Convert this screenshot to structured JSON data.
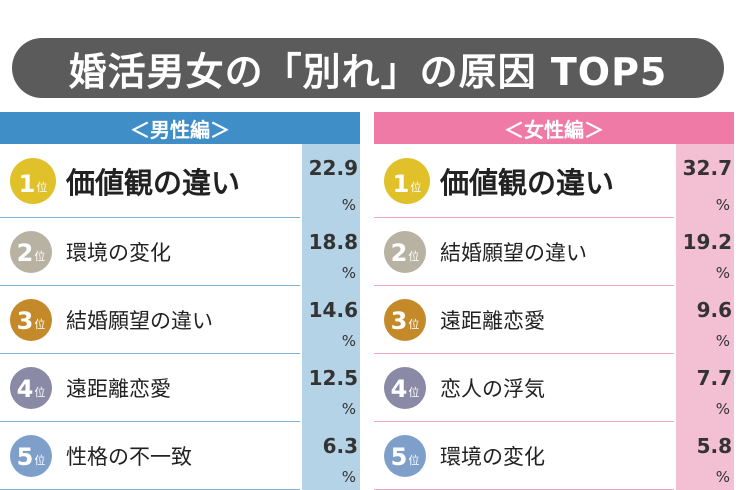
{
  "title": "婚活男女の「別れ」の原因 TOP5",
  "rank_suffix": "位",
  "unit": "%",
  "colors": {
    "title_bg": "#5b5b5b",
    "male_header": "#3f8ec8",
    "male_value_bg": "#b5d3e6",
    "male_line": "#7fb3d6",
    "female_header": "#f07aa6",
    "female_value_bg": "#f3bfd2",
    "female_line": "#f0a8c2",
    "rank_1": "#e0c12a",
    "rank_2": "#b8b2a2",
    "rank_3": "#c48a2a",
    "rank_4": "#8a89a6",
    "rank_5": "#7f9fcb"
  },
  "chart_data": [
    {
      "type": "table",
      "title": "＜男性編＞",
      "columns": [
        "rank",
        "reason",
        "percent"
      ],
      "rows": [
        {
          "rank": "1",
          "label": "価値観の違い",
          "value": "22.9"
        },
        {
          "rank": "2",
          "label": "環境の変化",
          "value": "18.8"
        },
        {
          "rank": "3",
          "label": "結婚願望の違い",
          "value": "14.6"
        },
        {
          "rank": "4",
          "label": "遠距離恋愛",
          "value": "12.5"
        },
        {
          "rank": "5",
          "label": "性格の不一致",
          "value": "6.3"
        }
      ]
    },
    {
      "type": "table",
      "title": "＜女性編＞",
      "columns": [
        "rank",
        "reason",
        "percent"
      ],
      "rows": [
        {
          "rank": "1",
          "label": "価値観の違い",
          "value": "32.7"
        },
        {
          "rank": "2",
          "label": "結婚願望の違い",
          "value": "19.2"
        },
        {
          "rank": "3",
          "label": "遠距離恋愛",
          "value": "9.6"
        },
        {
          "rank": "4",
          "label": "恋人の浮気",
          "value": "7.7"
        },
        {
          "rank": "5",
          "label": "環境の変化",
          "value": "5.8"
        }
      ]
    }
  ]
}
